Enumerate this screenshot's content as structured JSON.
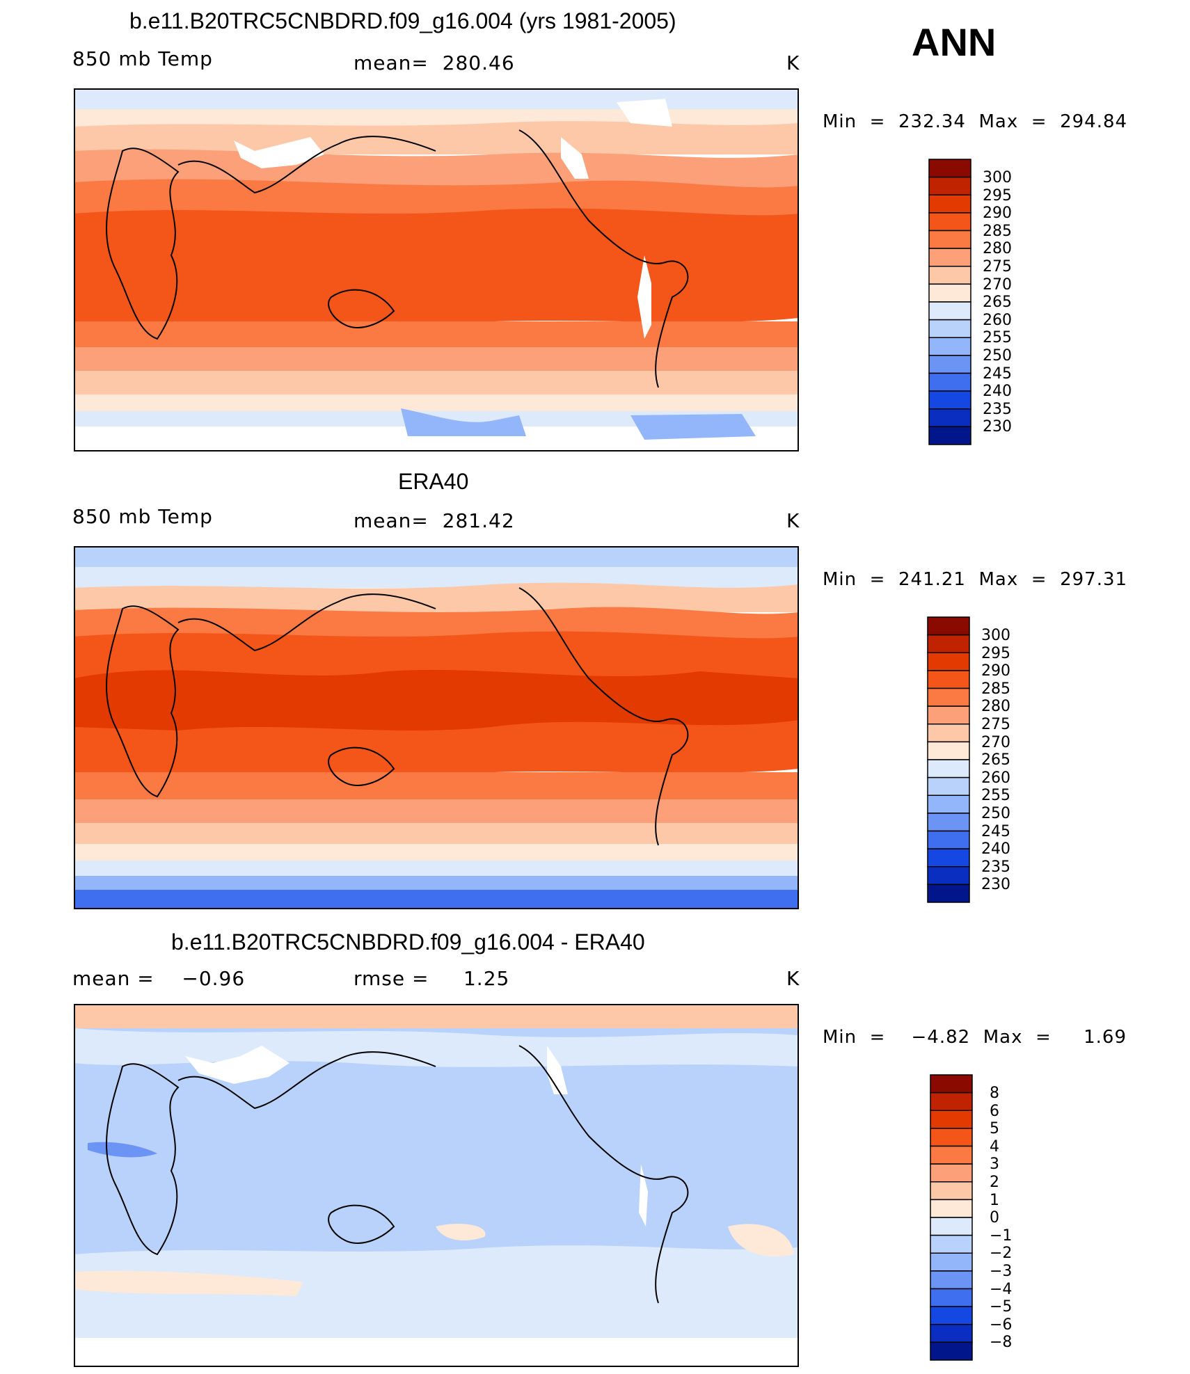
{
  "season": "ANN",
  "legend_top": {
    "levels": [
      "300",
      "295",
      "290",
      "285",
      "280",
      "275",
      "270",
      "265",
      "260",
      "255",
      "250",
      "245",
      "240",
      "235",
      "230"
    ],
    "colors": [
      "#8b0a00",
      "#c02300",
      "#e23a00",
      "#f4561a",
      "#fb7a44",
      "#fca07a",
      "#fdc8a8",
      "#fee8d8",
      "#ddeafc",
      "#b8d2fb",
      "#93b5fa",
      "#6c94f4",
      "#3f6fee",
      "#1548e2",
      "#0a2ec0",
      "#00168a"
    ]
  },
  "legend_diff": {
    "levels": [
      "8",
      "6",
      "5",
      "4",
      "3",
      "2",
      "1",
      "0",
      "−1",
      "−2",
      "−3",
      "−4",
      "−5",
      "−6",
      "−8"
    ],
    "colors": [
      "#8b0a00",
      "#c02300",
      "#e23a00",
      "#f4561a",
      "#fb7a44",
      "#fca07a",
      "#fdc8a8",
      "#fee8d8",
      "#ddeafc",
      "#b8d2fb",
      "#93b5fa",
      "#6c94f4",
      "#3f6fee",
      "#1548e2",
      "#0a2ec0",
      "#00168a"
    ]
  },
  "panels": [
    {
      "title": "b.e11.B20TRC5CNBDRD.f09_g16.004 (yrs 1981-2005)",
      "left_label": "850 mb Temp",
      "center_label": "mean=  280.46",
      "units": "K",
      "minmax": "Min  =  232.34  Max  =  294.84"
    },
    {
      "title": "ERA40",
      "left_label": "850 mb Temp",
      "center_label": "mean=  281.42",
      "units": "K",
      "minmax": "Min  =  241.21  Max  =  297.31"
    },
    {
      "title": "b.e11.B20TRC5CNBDRD.f09_g16.004 - ERA40",
      "left_label": "mean =    −0.96",
      "center_label": "rmse =     1.25",
      "units": "K",
      "minmax": "Min  =    −4.82  Max  =     1.69"
    }
  ]
}
